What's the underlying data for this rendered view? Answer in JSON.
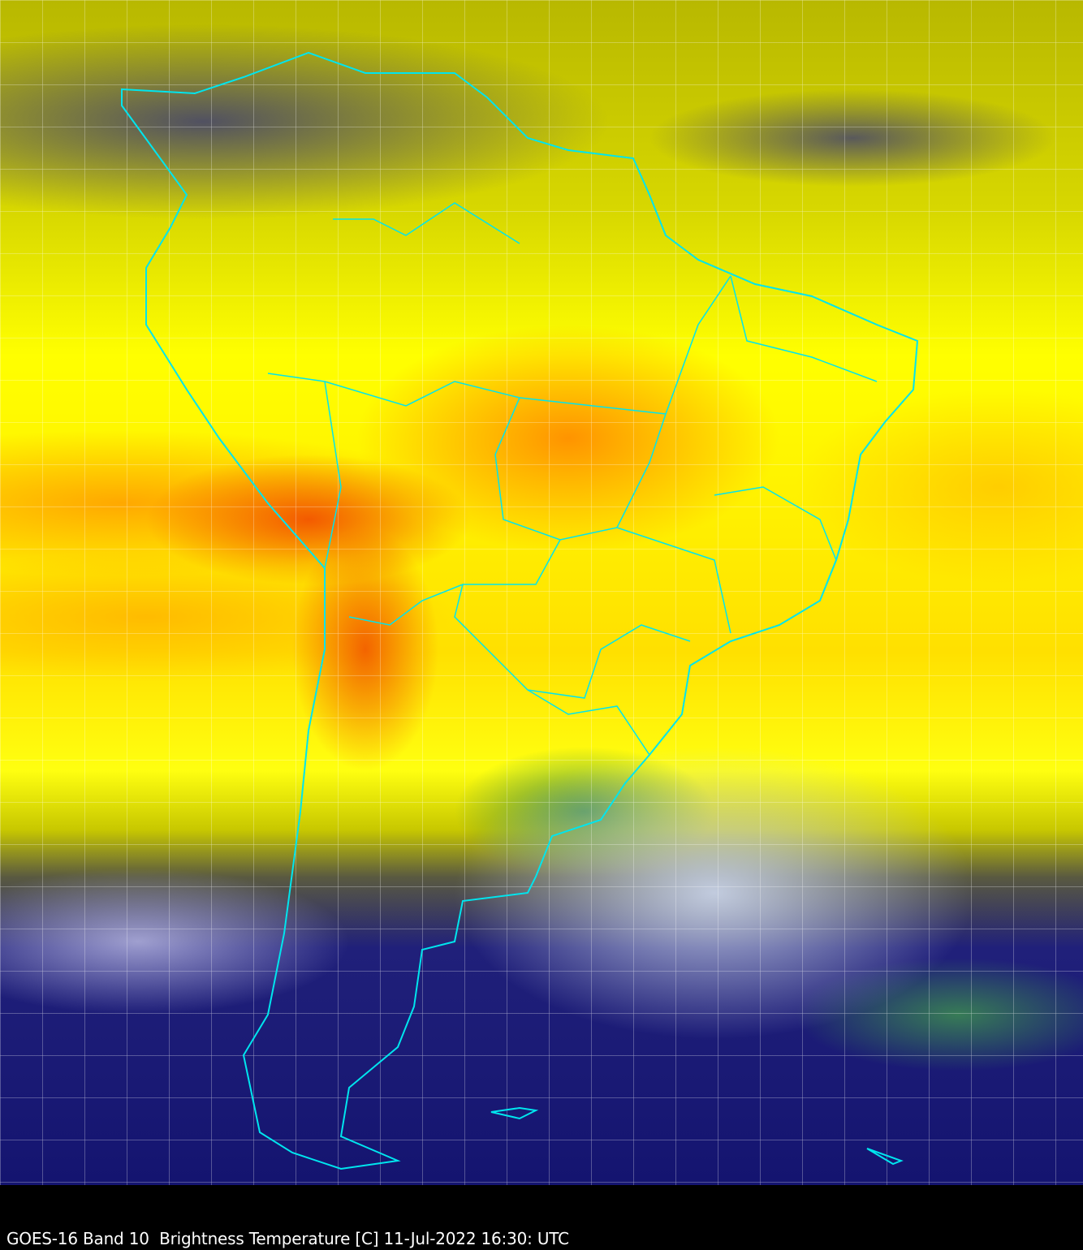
{
  "caption": "GOES-16 Band 10  Brightness Temperature [C] 11-Jul-2022 16:30: UTC",
  "map": {
    "region": "South America",
    "border_color": "#00e5ee",
    "grid": "dashed lat/lon graticule",
    "colors": {
      "warm": "#ff8c00",
      "dry": "#ffff00",
      "moist": "#1a1a7a",
      "cold_cloud": "#ffffff",
      "coldest": "#3c8c50"
    }
  }
}
